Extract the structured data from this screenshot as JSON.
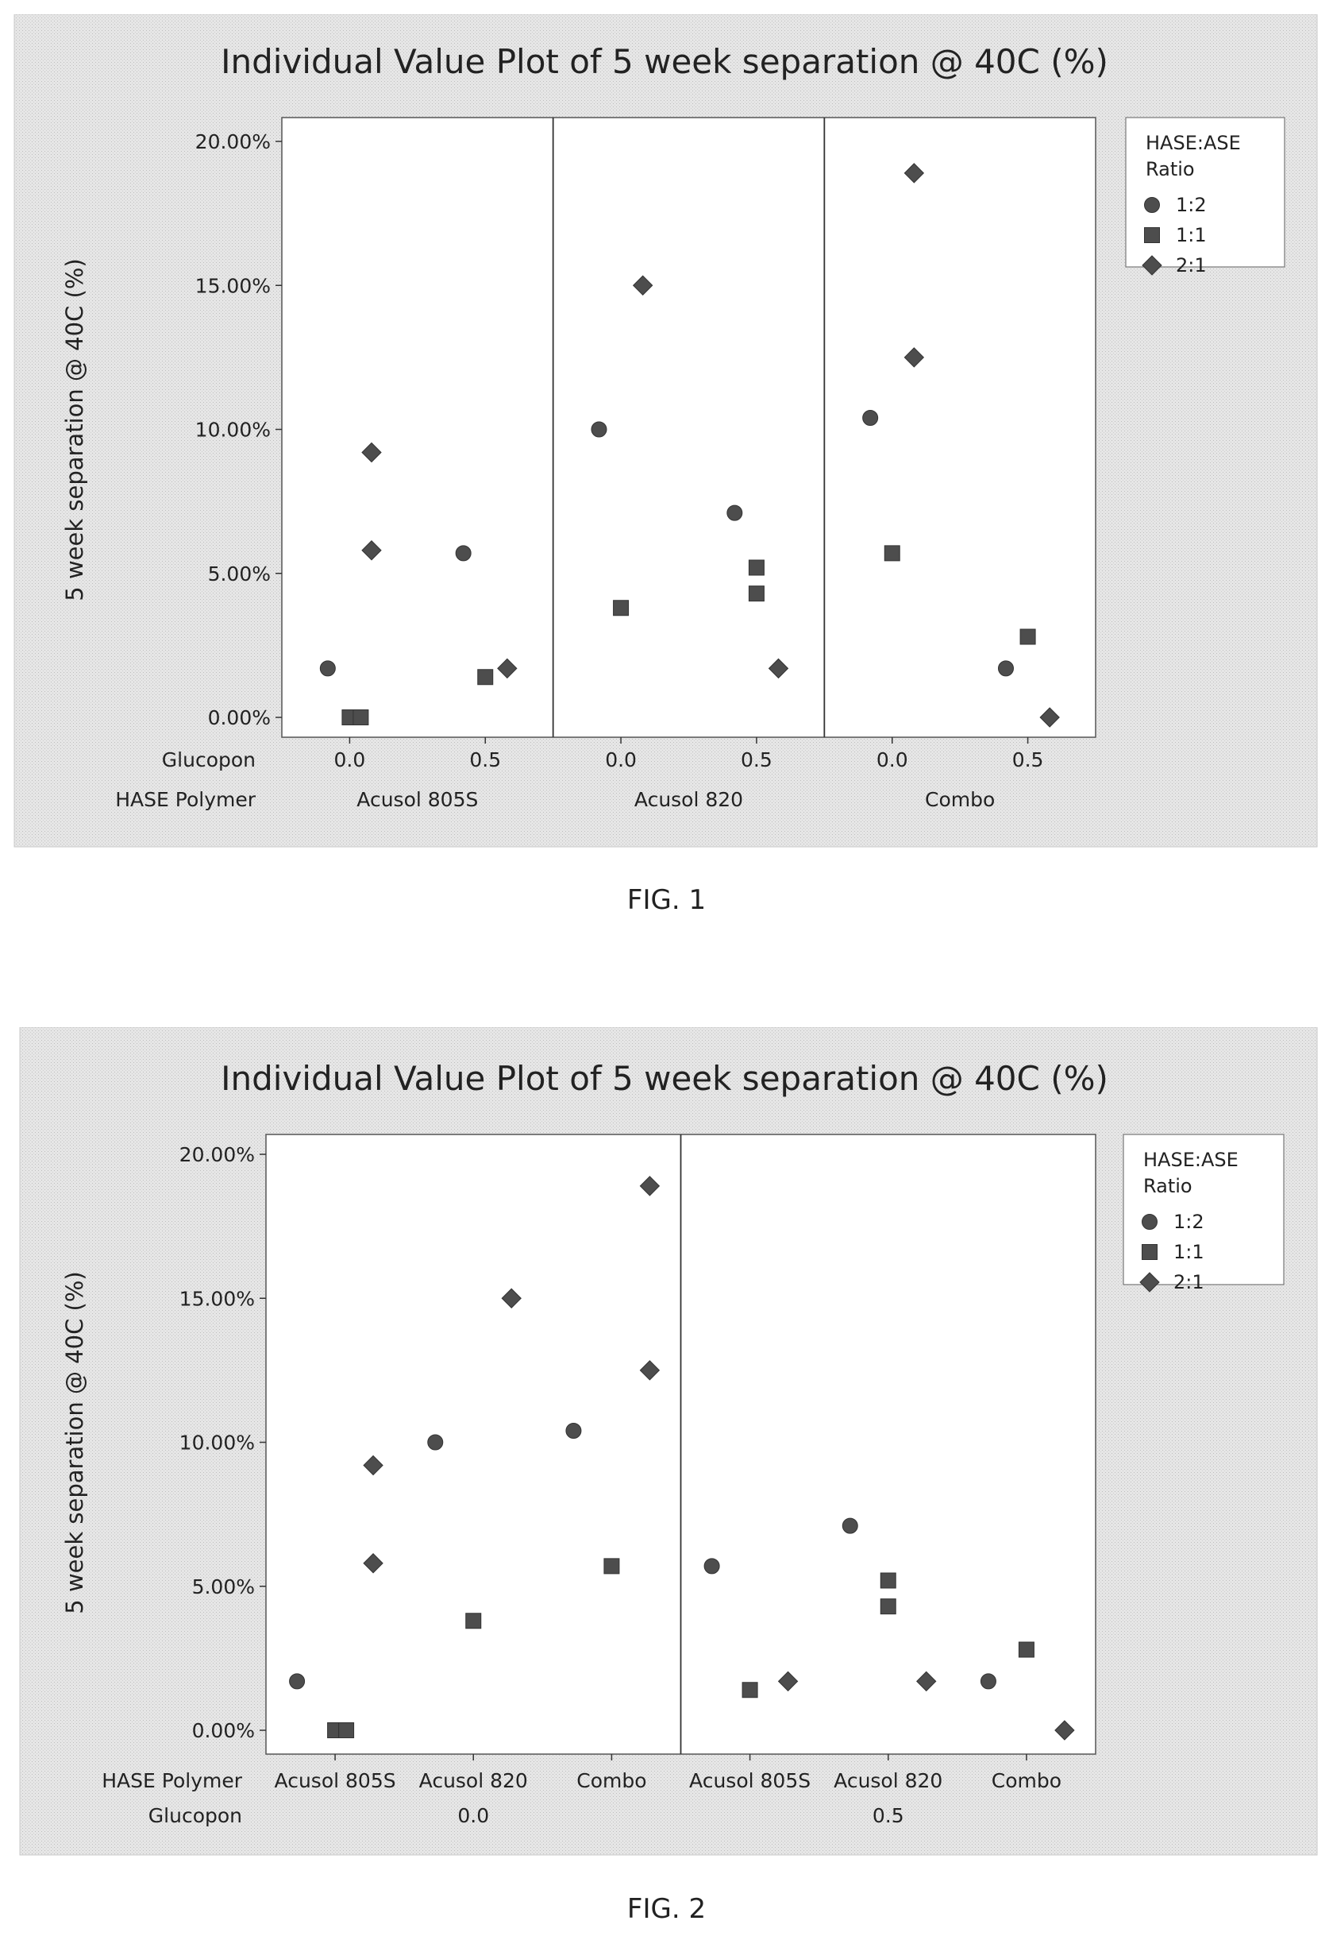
{
  "figures": [
    {
      "caption": "FIG. 1"
    },
    {
      "caption": "FIG. 2"
    }
  ],
  "chart_data": [
    {
      "type": "scatter",
      "title": "Individual Value Plot of 5 week separation @ 40C (%)",
      "ylabel": "5 week separation @ 40C (%)",
      "ylim": [
        0,
        0.2
      ],
      "yticks": [
        "0.00%",
        "5.00%",
        "10.00%",
        "15.00%",
        "20.00%"
      ],
      "grouping": {
        "inner_label": "Glucopon",
        "inner_levels": [
          "0.0",
          "0.5"
        ],
        "outer_label": "HASE Polymer",
        "outer_levels": [
          "Acusol 805S",
          "Acusol 820",
          "Combo"
        ]
      },
      "legend": {
        "title_lines": [
          "HASE:ASE",
          "Ratio"
        ],
        "placement": "right",
        "entries": [
          {
            "label": "1:2",
            "marker": "circle"
          },
          {
            "label": "1:1",
            "marker": "square"
          },
          {
            "label": "2:1",
            "marker": "diamond"
          }
        ]
      },
      "series": [
        {
          "name": "1:2",
          "marker": "circle",
          "points": [
            {
              "polymer": "Acusol 805S",
              "glucopon": 0.0,
              "y": 0.017
            },
            {
              "polymer": "Acusol 805S",
              "glucopon": 0.5,
              "y": 0.057
            },
            {
              "polymer": "Acusol 820",
              "glucopon": 0.0,
              "y": 0.1
            },
            {
              "polymer": "Acusol 820",
              "glucopon": 0.5,
              "y": 0.071
            },
            {
              "polymer": "Combo",
              "glucopon": 0.0,
              "y": 0.104
            },
            {
              "polymer": "Combo",
              "glucopon": 0.5,
              "y": 0.017
            }
          ]
        },
        {
          "name": "1:1",
          "marker": "square",
          "points": [
            {
              "polymer": "Acusol 805S",
              "glucopon": 0.0,
              "y": 0.0
            },
            {
              "polymer": "Acusol 805S",
              "glucopon": 0.0,
              "y": 0.0
            },
            {
              "polymer": "Acusol 805S",
              "glucopon": 0.5,
              "y": 0.014
            },
            {
              "polymer": "Acusol 820",
              "glucopon": 0.0,
              "y": 0.038
            },
            {
              "polymer": "Acusol 820",
              "glucopon": 0.5,
              "y": 0.052
            },
            {
              "polymer": "Acusol 820",
              "glucopon": 0.5,
              "y": 0.043
            },
            {
              "polymer": "Combo",
              "glucopon": 0.0,
              "y": 0.057
            },
            {
              "polymer": "Combo",
              "glucopon": 0.5,
              "y": 0.028
            }
          ]
        },
        {
          "name": "2:1",
          "marker": "diamond",
          "points": [
            {
              "polymer": "Acusol 805S",
              "glucopon": 0.0,
              "y": 0.092
            },
            {
              "polymer": "Acusol 805S",
              "glucopon": 0.0,
              "y": 0.058
            },
            {
              "polymer": "Acusol 805S",
              "glucopon": 0.5,
              "y": 0.017
            },
            {
              "polymer": "Acusol 820",
              "glucopon": 0.0,
              "y": 0.15
            },
            {
              "polymer": "Acusol 820",
              "glucopon": 0.5,
              "y": 0.017
            },
            {
              "polymer": "Combo",
              "glucopon": 0.0,
              "y": 0.189
            },
            {
              "polymer": "Combo",
              "glucopon": 0.0,
              "y": 0.125
            },
            {
              "polymer": "Combo",
              "glucopon": 0.5,
              "y": 0.0
            }
          ]
        }
      ]
    },
    {
      "type": "scatter",
      "title": "Individual Value Plot of 5 week separation @ 40C (%)",
      "ylabel": "5 week separation @ 40C (%)",
      "ylim": [
        0,
        0.2
      ],
      "yticks": [
        "0.00%",
        "5.00%",
        "10.00%",
        "15.00%",
        "20.00%"
      ],
      "grouping": {
        "inner_label": "HASE Polymer",
        "inner_levels": [
          "Acusol 805S",
          "Acusol 820",
          "Combo"
        ],
        "outer_label": "Glucopon",
        "outer_levels": [
          "0.0",
          "0.5"
        ]
      },
      "legend": {
        "title_lines": [
          "HASE:ASE",
          "Ratio"
        ],
        "placement": "right",
        "entries": [
          {
            "label": "1:2",
            "marker": "circle"
          },
          {
            "label": "1:1",
            "marker": "square"
          },
          {
            "label": "2:1",
            "marker": "diamond"
          }
        ]
      },
      "series": [
        {
          "name": "1:2",
          "marker": "circle",
          "points": [
            {
              "polymer": "Acusol 805S",
              "glucopon": 0.0,
              "y": 0.017
            },
            {
              "polymer": "Acusol 805S",
              "glucopon": 0.5,
              "y": 0.057
            },
            {
              "polymer": "Acusol 820",
              "glucopon": 0.0,
              "y": 0.1
            },
            {
              "polymer": "Acusol 820",
              "glucopon": 0.5,
              "y": 0.071
            },
            {
              "polymer": "Combo",
              "glucopon": 0.0,
              "y": 0.104
            },
            {
              "polymer": "Combo",
              "glucopon": 0.5,
              "y": 0.017
            }
          ]
        },
        {
          "name": "1:1",
          "marker": "square",
          "points": [
            {
              "polymer": "Acusol 805S",
              "glucopon": 0.0,
              "y": 0.0
            },
            {
              "polymer": "Acusol 805S",
              "glucopon": 0.0,
              "y": 0.0
            },
            {
              "polymer": "Acusol 805S",
              "glucopon": 0.5,
              "y": 0.014
            },
            {
              "polymer": "Acusol 820",
              "glucopon": 0.0,
              "y": 0.038
            },
            {
              "polymer": "Acusol 820",
              "glucopon": 0.5,
              "y": 0.052
            },
            {
              "polymer": "Acusol 820",
              "glucopon": 0.5,
              "y": 0.043
            },
            {
              "polymer": "Combo",
              "glucopon": 0.0,
              "y": 0.057
            },
            {
              "polymer": "Combo",
              "glucopon": 0.5,
              "y": 0.028
            }
          ]
        },
        {
          "name": "2:1",
          "marker": "diamond",
          "points": [
            {
              "polymer": "Acusol 805S",
              "glucopon": 0.0,
              "y": 0.092
            },
            {
              "polymer": "Acusol 805S",
              "glucopon": 0.0,
              "y": 0.058
            },
            {
              "polymer": "Acusol 805S",
              "glucopon": 0.5,
              "y": 0.017
            },
            {
              "polymer": "Acusol 820",
              "glucopon": 0.0,
              "y": 0.15
            },
            {
              "polymer": "Acusol 820",
              "glucopon": 0.5,
              "y": 0.017
            },
            {
              "polymer": "Combo",
              "glucopon": 0.0,
              "y": 0.189
            },
            {
              "polymer": "Combo",
              "glucopon": 0.0,
              "y": 0.125
            },
            {
              "polymer": "Combo",
              "glucopon": 0.5,
              "y": 0.0
            }
          ]
        }
      ]
    }
  ]
}
